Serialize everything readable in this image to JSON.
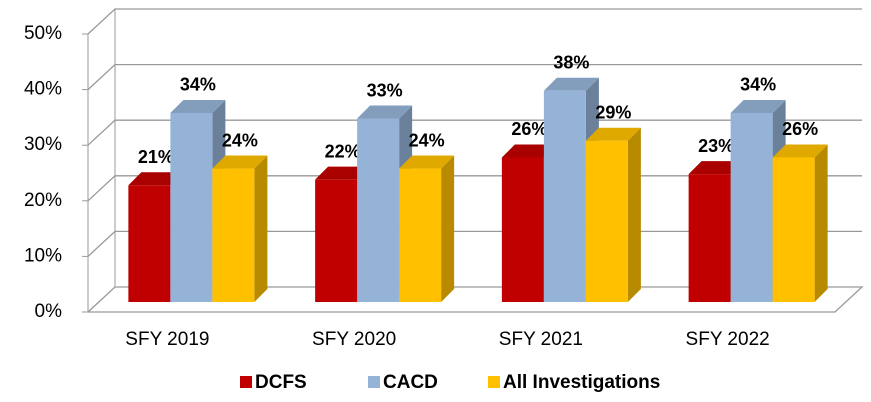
{
  "chart_data": {
    "type": "bar3d",
    "categories": [
      "SFY 2019",
      "SFY 2020",
      "SFY 2021",
      "SFY 2022"
    ],
    "series": [
      {
        "name": "DCFS",
        "color": "#c00000",
        "values": [
          21,
          22,
          26,
          23
        ],
        "value_labels": [
          "21%",
          "22%",
          "26%",
          "23%"
        ]
      },
      {
        "name": "CACD",
        "color": "#95b3d7",
        "values": [
          34,
          33,
          38,
          34
        ],
        "value_labels": [
          "34%",
          "33%",
          "38%",
          "34%"
        ]
      },
      {
        "name": "All Investigations",
        "color": "#ffc000",
        "values": [
          24,
          24,
          29,
          26
        ],
        "value_labels": [
          "24%",
          "24%",
          "29%",
          "26%"
        ]
      }
    ],
    "ylim": [
      0,
      50
    ],
    "yticks": [
      {
        "value": 0,
        "label": "0%"
      },
      {
        "value": 10,
        "label": "10%"
      },
      {
        "value": 20,
        "label": "20%"
      },
      {
        "value": 30,
        "label": "30%"
      },
      {
        "value": 40,
        "label": "40%"
      },
      {
        "value": 50,
        "label": "50%"
      }
    ],
    "grid": true,
    "legend": "bottom"
  }
}
